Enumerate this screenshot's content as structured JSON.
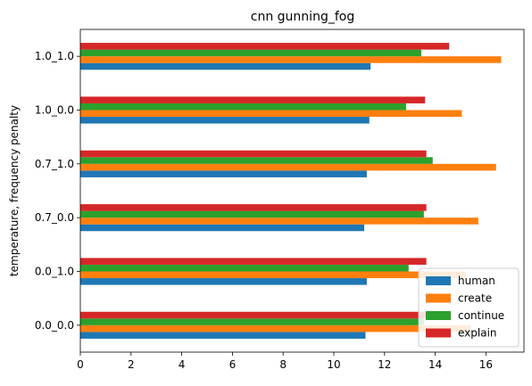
{
  "chart_data": {
    "type": "bar",
    "orientation": "horizontal",
    "title": "cnn gunning_fog",
    "xlabel": "",
    "ylabel": "temperature, frequency penalty",
    "categories": [
      "0.0_0.0",
      "0.0_1.0",
      "0.7_0.0",
      "0.7_1.0",
      "1.0_0.0",
      "1.0_1.0"
    ],
    "series": [
      {
        "name": "human",
        "color": "#1f77b4",
        "values": [
          11.25,
          11.3,
          11.2,
          11.3,
          11.4,
          11.45
        ]
      },
      {
        "name": "create",
        "color": "#ff7f0e",
        "values": [
          15.4,
          15.2,
          15.7,
          16.4,
          15.05,
          16.6
        ]
      },
      {
        "name": "continue",
        "color": "#2ca02c",
        "values": [
          13.55,
          12.95,
          13.55,
          13.9,
          12.85,
          13.45
        ]
      },
      {
        "name": "explain",
        "color": "#d62728",
        "values": [
          13.65,
          13.65,
          13.65,
          13.65,
          13.6,
          14.55
        ]
      }
    ],
    "xlim": [
      0,
      17.5
    ],
    "xticks": [
      0,
      2,
      4,
      6,
      8,
      10,
      12,
      14,
      16
    ],
    "grid": false,
    "legend_position": "lower-right"
  }
}
